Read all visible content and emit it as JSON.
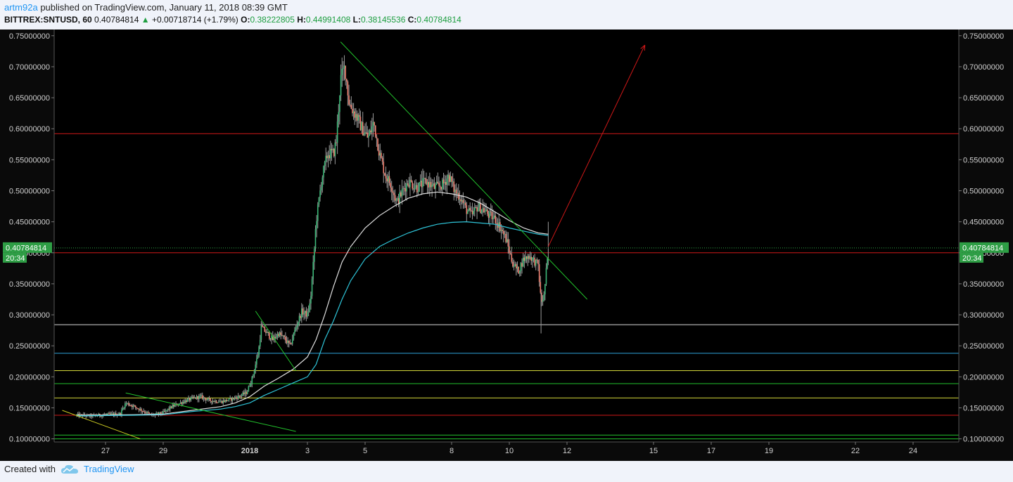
{
  "header": {
    "author": "artm92a",
    "published_text": " published on TradingView.com, January 11, 2018 08:39 GMT",
    "symbol": "BITTREX:SNTUSD, 60",
    "last_price": "0.40784814",
    "change_icon": "triangle-up-icon",
    "change": "+0.00718714 (+1.79%)",
    "o_label": "O:",
    "o_value": "0.38222805",
    "h_label": "H:",
    "h_value": "0.44991408",
    "l_label": "L:",
    "l_value": "0.38145536",
    "c_label": "C:",
    "c_value": "0.40784814"
  },
  "footer": {
    "created_with": "Created with",
    "brand": "TradingView",
    "brand_icon": "tradingview-cloud-icon"
  },
  "price_badge": {
    "price": "0.40784814",
    "countdown": "20:34",
    "color": "#2e9e45"
  },
  "colors": {
    "background": "#000000",
    "candle_up": "#3cb878",
    "candle_down": "#f08070",
    "ma_slow": "#2ec4d8",
    "ma_fast": "#e0e0e0",
    "trend_green": "#22c22c",
    "trend_yellow": "#cccc22",
    "forecast_red": "#d01818",
    "axis_text": "#d0d0d0"
  },
  "chart_data": {
    "type": "candlestick",
    "title": "",
    "xlabel": "",
    "ylabel": "",
    "ylim": [
      0.095,
      0.76
    ],
    "y_ticks": [
      "0.10000000",
      "0.15000000",
      "0.20000000",
      "0.25000000",
      "0.30000000",
      "0.35000000",
      "0.40000000",
      "0.45000000",
      "0.50000000",
      "0.55000000",
      "0.60000000",
      "0.65000000",
      "0.70000000",
      "0.75000000"
    ],
    "x_ticks": [
      {
        "label": "27",
        "day": 27
      },
      {
        "label": "29",
        "day": 29
      },
      {
        "label": "2018",
        "day": 32
      },
      {
        "label": "3",
        "day": 34
      },
      {
        "label": "5",
        "day": 36
      },
      {
        "label": "8",
        "day": 39
      },
      {
        "label": "10",
        "day": 41
      },
      {
        "label": "12",
        "day": 43
      },
      {
        "label": "15",
        "day": 46
      },
      {
        "label": "17",
        "day": 48
      },
      {
        "label": "19",
        "day": 50
      },
      {
        "label": "22",
        "day": 53
      },
      {
        "label": "24",
        "day": 55
      }
    ],
    "price_path": [
      [
        26.0,
        0.138
      ],
      [
        26.5,
        0.137
      ],
      [
        27.0,
        0.139
      ],
      [
        27.5,
        0.14
      ],
      [
        27.7,
        0.158
      ],
      [
        28.0,
        0.152
      ],
      [
        28.3,
        0.145
      ],
      [
        28.6,
        0.138
      ],
      [
        29.0,
        0.142
      ],
      [
        29.3,
        0.152
      ],
      [
        29.7,
        0.16
      ],
      [
        30.0,
        0.165
      ],
      [
        30.3,
        0.168
      ],
      [
        30.6,
        0.162
      ],
      [
        31.0,
        0.16
      ],
      [
        31.3,
        0.163
      ],
      [
        31.6,
        0.168
      ],
      [
        31.9,
        0.175
      ],
      [
        32.1,
        0.2
      ],
      [
        32.3,
        0.24
      ],
      [
        32.4,
        0.28
      ],
      [
        32.6,
        0.27
      ],
      [
        32.8,
        0.26
      ],
      [
        33.0,
        0.27
      ],
      [
        33.2,
        0.262
      ],
      [
        33.4,
        0.25
      ],
      [
        33.6,
        0.28
      ],
      [
        33.8,
        0.305
      ],
      [
        34.0,
        0.3
      ],
      [
        34.1,
        0.32
      ],
      [
        34.2,
        0.38
      ],
      [
        34.3,
        0.45
      ],
      [
        34.5,
        0.52
      ],
      [
        34.7,
        0.56
      ],
      [
        34.9,
        0.56
      ],
      [
        35.0,
        0.58
      ],
      [
        35.15,
        0.68
      ],
      [
        35.3,
        0.7
      ],
      [
        35.45,
        0.64
      ],
      [
        35.7,
        0.62
      ],
      [
        35.9,
        0.6
      ],
      [
        36.1,
        0.585
      ],
      [
        36.3,
        0.61
      ],
      [
        36.5,
        0.56
      ],
      [
        36.7,
        0.525
      ],
      [
        36.9,
        0.51
      ],
      [
        37.1,
        0.48
      ],
      [
        37.3,
        0.5
      ],
      [
        37.5,
        0.515
      ],
      [
        37.8,
        0.505
      ],
      [
        38.1,
        0.515
      ],
      [
        38.4,
        0.505
      ],
      [
        38.7,
        0.51
      ],
      [
        38.9,
        0.525
      ],
      [
        39.1,
        0.5
      ],
      [
        39.3,
        0.49
      ],
      [
        39.5,
        0.47
      ],
      [
        39.7,
        0.46
      ],
      [
        39.9,
        0.475
      ],
      [
        40.1,
        0.47
      ],
      [
        40.3,
        0.46
      ],
      [
        40.5,
        0.455
      ],
      [
        40.7,
        0.44
      ],
      [
        40.9,
        0.42
      ],
      [
        41.1,
        0.385
      ],
      [
        41.3,
        0.37
      ],
      [
        41.5,
        0.39
      ],
      [
        41.7,
        0.395
      ],
      [
        41.9,
        0.385
      ],
      [
        42.0,
        0.38
      ],
      [
        42.1,
        0.32
      ],
      [
        42.2,
        0.33
      ],
      [
        42.3,
        0.38
      ],
      [
        42.35,
        0.40784814
      ]
    ],
    "series": [
      {
        "name": "",
        "points": [
          [
            26.0,
            0.138
          ],
          [
            28.0,
            0.139
          ],
          [
            29.0,
            0.14
          ],
          [
            30.0,
            0.146
          ],
          [
            31.0,
            0.152
          ],
          [
            31.5,
            0.158
          ],
          [
            32.0,
            0.168
          ],
          [
            32.5,
            0.185
          ],
          [
            33.0,
            0.198
          ],
          [
            33.5,
            0.212
          ],
          [
            34.0,
            0.232
          ],
          [
            34.3,
            0.26
          ],
          [
            34.6,
            0.3
          ],
          [
            34.9,
            0.345
          ],
          [
            35.2,
            0.385
          ],
          [
            35.5,
            0.41
          ],
          [
            36.0,
            0.44
          ],
          [
            36.5,
            0.46
          ],
          [
            37.0,
            0.475
          ],
          [
            37.5,
            0.488
          ],
          [
            38.0,
            0.495
          ],
          [
            38.5,
            0.498
          ],
          [
            39.0,
            0.495
          ],
          [
            39.5,
            0.49
          ],
          [
            40.0,
            0.48
          ],
          [
            40.5,
            0.466
          ],
          [
            41.0,
            0.452
          ],
          [
            41.5,
            0.44
          ],
          [
            42.0,
            0.432
          ],
          [
            42.35,
            0.43
          ]
        ]
      },
      {
        "name": "",
        "points": [
          [
            26.0,
            0.137
          ],
          [
            28.0,
            0.138
          ],
          [
            29.0,
            0.139
          ],
          [
            30.0,
            0.144
          ],
          [
            31.0,
            0.148
          ],
          [
            31.5,
            0.152
          ],
          [
            32.0,
            0.158
          ],
          [
            32.5,
            0.17
          ],
          [
            33.0,
            0.18
          ],
          [
            33.5,
            0.19
          ],
          [
            34.0,
            0.2
          ],
          [
            34.3,
            0.22
          ],
          [
            34.6,
            0.26
          ],
          [
            34.9,
            0.29
          ],
          [
            35.2,
            0.325
          ],
          [
            35.5,
            0.355
          ],
          [
            36.0,
            0.39
          ],
          [
            36.5,
            0.41
          ],
          [
            37.0,
            0.422
          ],
          [
            37.5,
            0.432
          ],
          [
            38.0,
            0.44
          ],
          [
            38.5,
            0.446
          ],
          [
            39.0,
            0.449
          ],
          [
            39.5,
            0.45
          ],
          [
            40.0,
            0.448
          ],
          [
            40.5,
            0.446
          ],
          [
            41.0,
            0.44
          ],
          [
            41.5,
            0.435
          ],
          [
            42.0,
            0.43
          ],
          [
            42.35,
            0.428
          ]
        ]
      }
    ],
    "horizontal_levels": [
      {
        "y": 0.592,
        "color": "#d01818"
      },
      {
        "y": 0.4,
        "color": "#d01818"
      },
      {
        "y": 0.284,
        "color": "#d8d8d8"
      },
      {
        "y": 0.238,
        "color": "#2e9fd8"
      },
      {
        "y": 0.21,
        "color": "#d4d83a"
      },
      {
        "y": 0.189,
        "color": "#22c22c"
      },
      {
        "y": 0.166,
        "color": "#d4d83a"
      },
      {
        "y": 0.138,
        "color": "#d01818"
      },
      {
        "y": 0.106,
        "color": "#22c22c"
      },
      {
        "y": 0.1,
        "color": "#22c22c"
      }
    ],
    "trend_lines": [
      {
        "from": [
          35.15,
          0.74
        ],
        "to": [
          43.7,
          0.325
        ],
        "color": "#22c22c"
      },
      {
        "from": [
          32.2,
          0.306
        ],
        "to": [
          33.6,
          0.21
        ],
        "color": "#22c22c"
      },
      {
        "from": [
          27.7,
          0.174
        ],
        "to": [
          33.6,
          0.112
        ],
        "color": "#22c22c"
      },
      {
        "from": [
          25.5,
          0.146
        ],
        "to": [
          28.2,
          0.1
        ],
        "color": "#cccc22"
      }
    ],
    "forecast_arrow": {
      "from": [
        42.35,
        0.41
      ],
      "to": [
        45.7,
        0.735
      ],
      "color": "#d01818"
    }
  }
}
